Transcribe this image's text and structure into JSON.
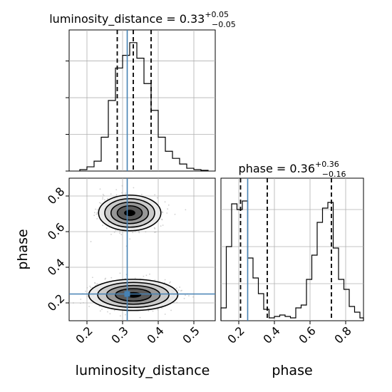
{
  "colors": {
    "background": "#ffffff",
    "axis": "#000000",
    "grid": "#b0b0b0",
    "hist": "#000000",
    "quantile": "#000000",
    "truth": "#4682b4",
    "scatter": "#aaaaaa",
    "density_levels": [
      "#e8e8e8",
      "#c4c4c4",
      "#8e8e8e",
      "#505050",
      "#000000"
    ]
  },
  "chart_data": [
    {
      "type": "histogram",
      "panel": "luminosity_distance marginal",
      "title_parameter": "luminosity_distance",
      "title_value": "0.33",
      "title_err_plus": "+0.05",
      "title_err_minus": "−0.05",
      "xlim": [
        0.15,
        0.56
      ],
      "ylim": [
        0,
        1
      ],
      "grid": true,
      "bins": [
        0.18,
        0.2,
        0.22,
        0.24,
        0.26,
        0.28,
        0.3,
        0.32,
        0.34,
        0.36,
        0.38,
        0.4,
        0.42,
        0.44,
        0.46,
        0.48,
        0.5,
        0.52,
        0.54
      ],
      "counts": [
        0.01,
        0.03,
        0.07,
        0.24,
        0.5,
        0.73,
        0.82,
        0.91,
        0.8,
        0.62,
        0.43,
        0.24,
        0.14,
        0.09,
        0.05,
        0.02,
        0.01,
        0.005
      ],
      "quantiles": [
        0.285,
        0.33,
        0.38
      ],
      "truth": 0.313
    },
    {
      "type": "scatter",
      "panel": "phase vs luminosity_distance",
      "xlabel": "luminosity_distance",
      "ylabel": "phase",
      "xlim": [
        0.15,
        0.56
      ],
      "ylim": [
        0.1,
        0.9
      ],
      "x_ticks": [
        "0.2",
        "0.3",
        "0.4",
        "0.5"
      ],
      "y_ticks": [
        "0.2",
        "0.4",
        "0.6",
        "0.8"
      ],
      "grid": true,
      "modes": [
        {
          "x": 0.32,
          "y": 0.705,
          "sx": 0.035,
          "sy": 0.04
        },
        {
          "x": 0.33,
          "y": 0.245,
          "sx": 0.05,
          "sy": 0.035
        }
      ],
      "density_levels": [
        1.0,
        1.5,
        2.0,
        2.5
      ],
      "truth": [
        0.313,
        0.25
      ]
    },
    {
      "type": "histogram",
      "panel": "phase marginal",
      "title_parameter": "phase",
      "title_value": "0.36",
      "title_err_plus": "+0.36",
      "title_err_minus": "−0.16",
      "xlabel": "phase",
      "xlim": [
        0.1,
        0.9
      ],
      "ylim": [
        0,
        1
      ],
      "x_ticks": [
        "0.2",
        "0.4",
        "0.6",
        "0.8"
      ],
      "grid": true,
      "bins": [
        0.1,
        0.13,
        0.16,
        0.19,
        0.22,
        0.25,
        0.28,
        0.31,
        0.34,
        0.37,
        0.4,
        0.43,
        0.46,
        0.49,
        0.52,
        0.55,
        0.58,
        0.61,
        0.64,
        0.67,
        0.7,
        0.73,
        0.76,
        0.79,
        0.82,
        0.85,
        0.88,
        0.9
      ],
      "counts": [
        0.09,
        0.52,
        0.82,
        0.78,
        0.84,
        0.44,
        0.3,
        0.19,
        0.08,
        0.02,
        0.03,
        0.04,
        0.03,
        0.02,
        0.09,
        0.11,
        0.29,
        0.46,
        0.69,
        0.79,
        0.83,
        0.51,
        0.29,
        0.22,
        0.1,
        0.06,
        0.02
      ],
      "quantiles": [
        0.21,
        0.36,
        0.72
      ],
      "truth": 0.25
    }
  ]
}
